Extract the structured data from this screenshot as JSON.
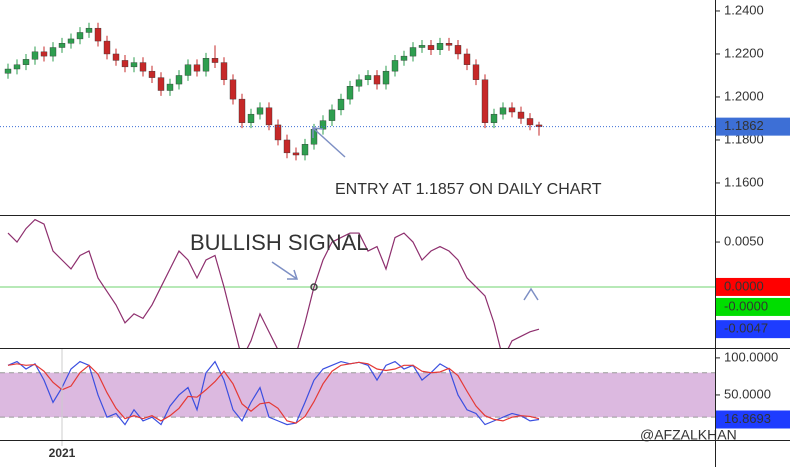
{
  "chart_data": [
    {
      "type": "candlestick",
      "ylim": [
        1.1451,
        1.2451
      ],
      "yticks": [
        {
          "value": 1.24,
          "label": "1.2400"
        },
        {
          "value": 1.22,
          "label": "1.2200"
        },
        {
          "value": 1.2,
          "label": "1.2000"
        },
        {
          "value": 1.18,
          "label": "1.1800"
        },
        {
          "value": 1.16,
          "label": "1.1600"
        }
      ],
      "up_color": "#2e9e4f",
      "down_color": "#c62828",
      "open": [
        1.211,
        1.213,
        1.215,
        1.2175,
        1.221,
        1.219,
        1.223,
        1.225,
        1.227,
        1.23,
        1.232,
        1.226,
        1.22,
        1.217,
        1.214,
        1.216,
        1.212,
        1.209,
        1.203,
        1.206,
        1.21,
        1.215,
        1.212,
        1.218,
        1.216,
        1.208,
        1.199,
        1.188,
        1.192,
        1.195,
        1.187,
        1.18,
        1.174,
        1.173,
        1.178,
        1.185,
        1.189,
        1.194,
        1.199,
        1.205,
        1.208,
        1.21,
        1.206,
        1.212,
        1.217,
        1.219,
        1.223,
        1.224,
        1.222,
        1.225,
        1.224,
        1.22,
        1.215,
        1.208,
        1.188,
        1.192,
        1.195,
        1.193,
        1.19,
        1.187
      ],
      "high": [
        1.2155,
        1.2175,
        1.22,
        1.2235,
        1.2235,
        1.2255,
        1.2275,
        1.2295,
        1.2325,
        1.2345,
        1.2345,
        1.2285,
        1.2225,
        1.2195,
        1.2185,
        1.2185,
        1.2145,
        1.2115,
        1.2085,
        1.2125,
        1.2175,
        1.2175,
        1.2205,
        1.224,
        1.2185,
        1.2105,
        1.2015,
        1.1945,
        1.1975,
        1.1975,
        1.1895,
        1.1825,
        1.1765,
        1.1805,
        1.1875,
        1.1915,
        1.1965,
        1.2015,
        1.2075,
        1.2105,
        1.2125,
        1.2125,
        1.2145,
        1.2195,
        1.2215,
        1.2255,
        1.2265,
        1.2265,
        1.2275,
        1.2275,
        1.2265,
        1.2225,
        1.2175,
        1.2105,
        1.1945,
        1.1975,
        1.1975,
        1.1955,
        1.1925,
        1.1885
      ],
      "low": [
        1.2085,
        1.2105,
        1.2125,
        1.215,
        1.2165,
        1.2165,
        1.2205,
        1.2225,
        1.2245,
        1.2275,
        1.2235,
        1.2175,
        1.2145,
        1.2115,
        1.2115,
        1.2095,
        1.2065,
        1.2005,
        1.2005,
        1.2035,
        1.2075,
        1.2095,
        1.2095,
        1.2135,
        1.2055,
        1.1965,
        1.1855,
        1.1855,
        1.1895,
        1.1845,
        1.1775,
        1.1715,
        1.1705,
        1.1705,
        1.1755,
        1.1825,
        1.1865,
        1.1915,
        1.1965,
        1.2025,
        1.2055,
        1.2035,
        1.2035,
        1.2095,
        1.2145,
        1.2165,
        1.2205,
        1.2195,
        1.2195,
        1.2215,
        1.2175,
        1.2125,
        1.2055,
        1.1855,
        1.1855,
        1.1895,
        1.1905,
        1.1875,
        1.1845,
        1.182
      ],
      "close": [
        1.213,
        1.215,
        1.2175,
        1.221,
        1.219,
        1.223,
        1.225,
        1.227,
        1.23,
        1.232,
        1.226,
        1.22,
        1.217,
        1.214,
        1.216,
        1.212,
        1.209,
        1.203,
        1.206,
        1.21,
        1.215,
        1.212,
        1.218,
        1.216,
        1.208,
        1.199,
        1.188,
        1.192,
        1.195,
        1.187,
        1.18,
        1.174,
        1.173,
        1.178,
        1.185,
        1.189,
        1.194,
        1.199,
        1.205,
        1.208,
        1.21,
        1.206,
        1.212,
        1.217,
        1.219,
        1.223,
        1.224,
        1.222,
        1.225,
        1.224,
        1.22,
        1.215,
        1.208,
        1.188,
        1.192,
        1.195,
        1.193,
        1.19,
        1.187,
        1.1862
      ],
      "price_line": {
        "value": 1.1862,
        "label": "1.1862",
        "color": "#3d6fd6"
      },
      "annotation": "ENTRY AT 1.1857 ON DAILY CHART"
    },
    {
      "type": "line",
      "ylim": [
        -0.0068,
        0.0079
      ],
      "yticks": [
        {
          "value": 0.005,
          "label": "0.0050"
        }
      ],
      "color": "#8e2f6e",
      "values": [
        0.006,
        0.005,
        0.0065,
        0.0075,
        0.007,
        0.004,
        0.003,
        0.002,
        0.0035,
        0.004,
        0.001,
        -0.0005,
        -0.002,
        -0.004,
        -0.003,
        -0.0035,
        -0.002,
        0.0,
        0.002,
        0.004,
        0.003,
        0.001,
        0.003,
        0.0035,
        0.0,
        -0.004,
        -0.008,
        -0.006,
        -0.003,
        -0.005,
        -0.007,
        -0.0085,
        -0.0075,
        -0.004,
        0.0,
        0.003,
        0.005,
        0.0055,
        0.006,
        0.006,
        0.004,
        0.0045,
        0.002,
        0.0055,
        0.006,
        0.005,
        0.003,
        0.004,
        0.0045,
        0.004,
        0.003,
        0.001,
        0.0,
        -0.001,
        -0.004,
        -0.008,
        -0.006,
        -0.0055,
        -0.005,
        -0.0047
      ],
      "level": 0,
      "level_color": "#6fd36f",
      "axis_labels": [
        {
          "value": 0,
          "label": "0.0000",
          "color": "#ff0000"
        },
        {
          "value": 0,
          "label": "-0.0000",
          "color": "#00dd00"
        },
        {
          "value": -0.0047,
          "label": "-0.0047",
          "color": "#1e3cff"
        }
      ],
      "annotation": "BULLISH SIGNAL"
    },
    {
      "type": "stochastic",
      "ylim": [
        -10.8,
        112
      ],
      "yticks": [
        {
          "value": 100,
          "label": "100.0000"
        },
        {
          "value": 50,
          "label": "50.0000"
        }
      ],
      "band": [
        20,
        80
      ],
      "band_color": "#dcb9e0",
      "series": [
        {
          "color": "#3b4fe0",
          "values": [
            90,
            95,
            85,
            92,
            70,
            40,
            60,
            85,
            95,
            90,
            50,
            20,
            25,
            10,
            30,
            15,
            20,
            10,
            35,
            50,
            60,
            30,
            80,
            95,
            70,
            30,
            15,
            40,
            60,
            20,
            15,
            10,
            12,
            40,
            70,
            85,
            90,
            95,
            92,
            94,
            90,
            70,
            90,
            95,
            85,
            90,
            70,
            80,
            92,
            85,
            50,
            30,
            25,
            10,
            15,
            20,
            25,
            22,
            15,
            16.8693
          ]
        },
        {
          "color": "#e53935",
          "values": [
            90,
            92,
            90,
            91,
            82,
            67,
            57,
            62,
            80,
            90,
            78,
            53,
            32,
            18,
            22,
            18,
            22,
            15,
            22,
            32,
            48,
            47,
            57,
            68,
            82,
            65,
            38,
            28,
            38,
            40,
            32,
            15,
            12,
            21,
            41,
            65,
            82,
            90,
            92,
            94,
            92,
            85,
            83,
            85,
            90,
            90,
            82,
            80,
            81,
            86,
            76,
            55,
            35,
            22,
            17,
            15,
            20,
            22,
            21,
            18
          ]
        }
      ],
      "axis_labels": [
        {
          "value": 16.8693,
          "label": "16.8693",
          "color": "#1e3cff"
        }
      ],
      "categories": [
        null,
        null,
        null,
        null,
        null,
        null,
        "2021",
        null,
        null,
        null,
        null,
        null,
        null,
        null,
        null,
        null,
        null,
        null,
        null,
        null,
        null,
        null,
        null,
        null,
        null,
        null,
        null,
        null,
        null,
        null,
        null,
        null,
        null,
        null,
        null,
        null,
        null,
        null,
        null,
        null,
        null,
        null,
        null,
        null,
        null,
        null,
        null,
        null,
        null,
        null,
        null,
        null,
        null,
        null,
        null,
        null,
        null,
        null,
        null,
        null
      ],
      "watermark": "@AFZALKHAN"
    }
  ]
}
